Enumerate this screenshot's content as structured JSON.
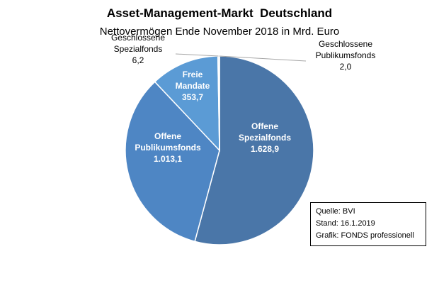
{
  "chart_data": {
    "type": "pie",
    "title": "Asset-Management-Markt  Deutschland",
    "subtitle": "Nettovermögen Ende November 2018 in Mrd. Euro",
    "slices": [
      {
        "name_lines": [
          "Offene",
          "Spezialfonds"
        ],
        "value": 1628.9,
        "value_label": "1.628,9",
        "color": "#4a76a8"
      },
      {
        "name_lines": [
          "Offene",
          "Publikumsfonds"
        ],
        "value": 1013.1,
        "value_label": "1.013,1",
        "color": "#4e86c4"
      },
      {
        "name_lines": [
          "Freie",
          "Mandate"
        ],
        "value": 353.7,
        "value_label": "353,7",
        "color": "#5b9bd5"
      },
      {
        "name_lines": [
          "Geschlossene",
          "Spezialfonds"
        ],
        "value": 6.2,
        "value_label": "6,2",
        "color": "#7fb2e2"
      },
      {
        "name_lines": [
          "Geschlossene",
          "Publikumsfonds"
        ],
        "value": 2.0,
        "value_label": "2,0",
        "color": "#9cc3ea"
      }
    ],
    "legend": "none"
  },
  "source_box": {
    "line1": "Quelle: BVI",
    "line2": "Stand: 16.1.2019",
    "line3": "Grafik: FONDS professionell"
  }
}
